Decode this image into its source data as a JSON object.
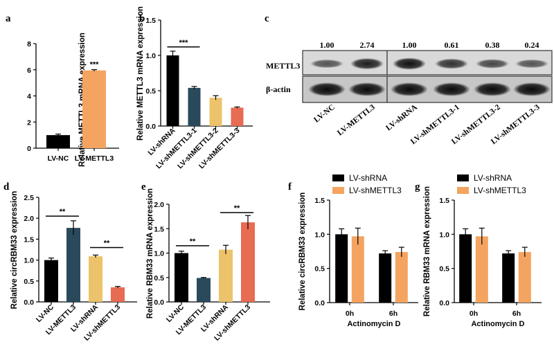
{
  "panel_labels": [
    "a",
    "b",
    "c",
    "d",
    "e",
    "f",
    "g"
  ],
  "chart_data": [
    {
      "panel": "a",
      "type": "bar",
      "ylabel": "Relative METTL3 mRNA expression",
      "categories": [
        "LV-NC",
        "LV-METTL3"
      ],
      "values": [
        1.0,
        5.95
      ],
      "errors": [
        0.08,
        0.06
      ],
      "colors": [
        "#000000",
        "#f4a460"
      ],
      "ylim": [
        0,
        8
      ],
      "yticks": [
        0,
        2,
        4,
        6,
        8
      ],
      "significance": [
        {
          "over": 1,
          "label": "***"
        }
      ]
    },
    {
      "panel": "b",
      "type": "bar",
      "ylabel": "Relative METTL3 mRNA expression",
      "categories": [
        "LV-shRNA",
        "LV-shMETTL3-1",
        "LV-shMETTL3-2",
        "LV-shMETTL3-3"
      ],
      "values": [
        1.0,
        0.54,
        0.4,
        0.26
      ],
      "errors": [
        0.06,
        0.02,
        0.03,
        0.01
      ],
      "colors": [
        "#000000",
        "#2a4a5c",
        "#ecc36a",
        "#e86b53"
      ],
      "ylim": [
        0,
        1.5
      ],
      "yticks": [
        "0.0",
        "0.5",
        "1.0",
        "1.5"
      ],
      "brackets": [
        {
          "from": 0,
          "to": 1,
          "y": 1.12,
          "label": "***"
        }
      ]
    },
    {
      "panel": "d",
      "type": "bar",
      "ylabel": "Relative circRBM33 expression",
      "categories": [
        "LV-NC",
        "LV-METTL3",
        "LV-shRNA",
        "LV-shMETTL3"
      ],
      "values": [
        1.0,
        1.77,
        1.09,
        0.35
      ],
      "errors": [
        0.05,
        0.17,
        0.03,
        0.02
      ],
      "colors": [
        "#000000",
        "#2a4a5c",
        "#ecc36a",
        "#e86b53"
      ],
      "ylim": [
        0,
        2.5
      ],
      "yticks": [
        "0.0",
        "0.5",
        "1.0",
        "1.5",
        "2.0",
        "2.5"
      ],
      "brackets": [
        {
          "from": 0,
          "to": 1,
          "y": 2.05,
          "label": "**"
        },
        {
          "from": 2,
          "to": 3,
          "y": 1.3,
          "label": "**"
        }
      ]
    },
    {
      "panel": "e",
      "type": "bar",
      "ylabel": "Relative RBM33 mRNA expression",
      "categories": [
        "LV-NC",
        "LV-METTL3",
        "LV-shRNA",
        "LV-shMETTL3"
      ],
      "values": [
        1.0,
        0.49,
        1.07,
        1.63
      ],
      "errors": [
        0.04,
        0.01,
        0.09,
        0.14
      ],
      "colors": [
        "#000000",
        "#2a4a5c",
        "#ecc36a",
        "#e86b53"
      ],
      "ylim": [
        0,
        2.0
      ],
      "yticks": [
        "0.0",
        "0.5",
        "1.0",
        "1.5",
        "2.0"
      ],
      "brackets": [
        {
          "from": 0,
          "to": 1,
          "y": 1.15,
          "label": "**"
        },
        {
          "from": 2,
          "to": 3,
          "y": 1.83,
          "label": "**"
        }
      ]
    },
    {
      "panel": "f",
      "type": "bar",
      "ylabel": "Relative circRBM33 expression",
      "xlabel": "Actinomycin D",
      "categories": [
        "0h",
        "6h"
      ],
      "series": [
        {
          "name": "LV-shRNA",
          "color": "#000000",
          "values": [
            1.0,
            0.72
          ],
          "errors": [
            0.08,
            0.04
          ]
        },
        {
          "name": "LV-shMETTL3",
          "color": "#f4a460",
          "values": [
            0.97,
            0.74
          ],
          "errors": [
            0.12,
            0.07
          ]
        }
      ],
      "ylim": [
        0,
        1.5
      ],
      "yticks": [
        "0.0",
        "0.5",
        "1.0",
        "1.5"
      ],
      "legend": "top-right"
    },
    {
      "panel": "g",
      "type": "bar",
      "ylabel": "Relative RBM33 mRNA expression",
      "xlabel": "Actinomycin D",
      "categories": [
        "0h",
        "6h"
      ],
      "series": [
        {
          "name": "LV-shRNA",
          "color": "#000000",
          "values": [
            1.0,
            0.72
          ],
          "errors": [
            0.08,
            0.04
          ]
        },
        {
          "name": "LV-shMETTL3",
          "color": "#f4a460",
          "values": [
            0.97,
            0.74
          ],
          "errors": [
            0.12,
            0.07
          ]
        }
      ],
      "ylim": [
        0,
        1.5
      ],
      "yticks": [
        "0.0",
        "0.5",
        "1.0",
        "1.5"
      ],
      "legend": "top-right"
    }
  ],
  "western_blot": {
    "panel": "c",
    "rows": [
      "METTL3",
      "β-actin"
    ],
    "left_group": {
      "lanes": [
        "LV-NC",
        "LV-METTL3"
      ],
      "quantification": [
        "1.00",
        "2.74"
      ],
      "band_intensity": [
        0.45,
        0.85
      ]
    },
    "right_group": {
      "lanes": [
        "LV-shRNA",
        "LV-shMETTL3-1",
        "LV-shMETTL3-2",
        "LV-shMETTL3-3"
      ],
      "quantification": [
        "1.00",
        "0.61",
        "0.38",
        "0.24"
      ],
      "band_intensity": [
        0.95,
        0.7,
        0.55,
        0.45
      ]
    }
  }
}
